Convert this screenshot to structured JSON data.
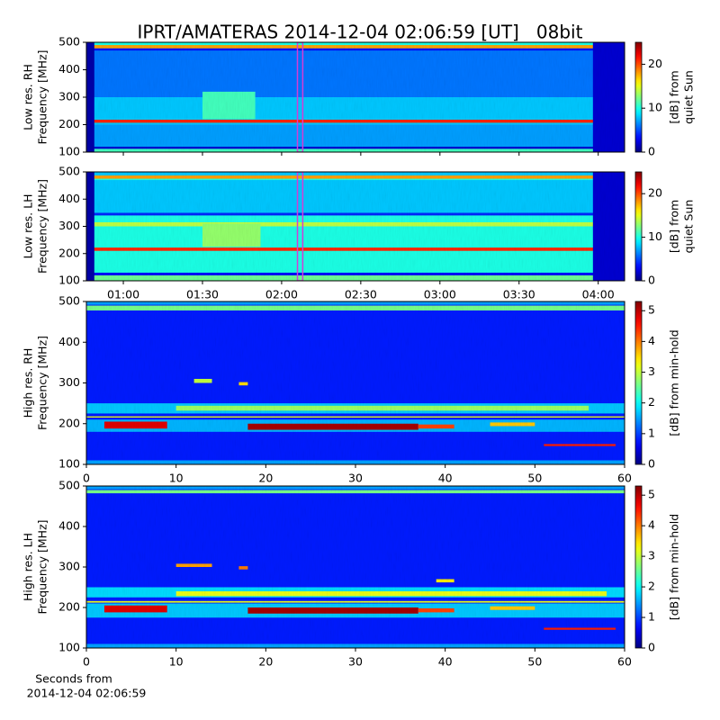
{
  "title": "IPRT/AMATERAS 2014-12-04 02:06:59 [UT]   08bit",
  "footer": [
    "Seconds from",
    "2014-12-04 02:06:59"
  ],
  "chart_data": [
    {
      "type": "heatmap",
      "colormap": "jet",
      "ylabel": [
        "Low res. RH",
        "Frequency [MHz]"
      ],
      "colorbar_label": [
        "[dB] from",
        "quiet Sun"
      ],
      "xlim": [
        46,
        250
      ],
      "xticks": [
        60,
        90,
        120,
        150,
        180,
        210,
        240
      ],
      "ylim": [
        100,
        500
      ],
      "yticks": [
        100,
        200,
        300,
        400,
        500
      ],
      "zlim": [
        0,
        25
      ],
      "zticks": [
        0,
        10,
        20
      ],
      "base_value": 8,
      "bands": [
        {
          "y": [
            100,
            112
          ],
          "value": 11
        },
        {
          "y": [
            112,
            120
          ],
          "value": 2
        },
        {
          "y": [
            120,
            200
          ],
          "value": 7
        },
        {
          "y": [
            207,
            218
          ],
          "value": 21
        },
        {
          "y": [
            300,
            470
          ],
          "value": 6
        },
        {
          "y": [
            470,
            478
          ],
          "value": 3
        },
        {
          "y": [
            478,
            490
          ],
          "value": 18
        },
        {
          "y": [
            490,
            500
          ],
          "value": 10
        }
      ],
      "patches": [
        {
          "x": [
            46,
            49
          ],
          "y": [
            100,
            500
          ],
          "value": 1
        },
        {
          "x": [
            238,
            250
          ],
          "y": [
            100,
            500
          ],
          "value": 2
        },
        {
          "x": [
            90,
            110
          ],
          "y": [
            220,
            320
          ],
          "value": 11
        }
      ],
      "marker": {
        "x": [
          126,
          128
        ],
        "color": "#d63cd6"
      }
    },
    {
      "type": "heatmap",
      "colormap": "jet",
      "ylabel": [
        "Low res. LH",
        "Frequency [MHz]"
      ],
      "colorbar_label": [
        "[dB] from",
        "quiet Sun"
      ],
      "xlim": [
        46,
        250
      ],
      "xticks": [
        {
          "value": 60,
          "label": "01:00"
        },
        {
          "value": 90,
          "label": "01:30"
        },
        {
          "value": 120,
          "label": "02:00"
        },
        {
          "value": 150,
          "label": "02:30"
        },
        {
          "value": 180,
          "label": "03:00"
        },
        {
          "value": 210,
          "label": "03:30"
        },
        {
          "value": 240,
          "label": "04:00"
        }
      ],
      "ylim": [
        100,
        500
      ],
      "yticks": [
        100,
        200,
        300,
        400,
        500
      ],
      "zlim": [
        0,
        25
      ],
      "zticks": [
        0,
        10,
        20
      ],
      "base_value": 10,
      "bands": [
        {
          "y": [
            100,
            120
          ],
          "value": 12
        },
        {
          "y": [
            120,
            130
          ],
          "value": 3
        },
        {
          "y": [
            130,
            205
          ],
          "value": 10
        },
        {
          "y": [
            210,
            222
          ],
          "value": 21
        },
        {
          "y": [
            300,
            315
          ],
          "value": 14
        },
        {
          "y": [
            340,
            350
          ],
          "value": 4
        },
        {
          "y": [
            350,
            470
          ],
          "value": 8
        },
        {
          "y": [
            475,
            487
          ],
          "value": 18
        },
        {
          "y": [
            487,
            500
          ],
          "value": 8
        }
      ],
      "patches": [
        {
          "x": [
            46,
            49
          ],
          "y": [
            100,
            500
          ],
          "value": 1
        },
        {
          "x": [
            238,
            250
          ],
          "y": [
            100,
            500
          ],
          "value": 2
        },
        {
          "x": [
            90,
            112
          ],
          "y": [
            225,
            310
          ],
          "value": 13
        }
      ],
      "marker": {
        "x": [
          126,
          128
        ],
        "color": "#d63cd6"
      }
    },
    {
      "type": "heatmap",
      "colormap": "jet",
      "ylabel": [
        "High res. RH",
        "Frequency [MHz]"
      ],
      "colorbar_label": [
        "[dB] from min-hold"
      ],
      "xlim": [
        0,
        60
      ],
      "xticks": [
        0,
        10,
        20,
        30,
        40,
        50,
        60
      ],
      "ylim": [
        100,
        500
      ],
      "yticks": [
        100,
        200,
        300,
        400,
        500
      ],
      "zlim": [
        0,
        5.3
      ],
      "zticks": [
        0,
        1,
        2,
        3,
        4,
        5
      ],
      "base_value": 0.8,
      "bands": [
        {
          "y": [
            100,
            110
          ],
          "value": 1.5
        },
        {
          "y": [
            180,
            210
          ],
          "value": 1.6
        },
        {
          "y": [
            215,
            218
          ],
          "value": 3.2
        },
        {
          "y": [
            225,
            250
          ],
          "value": 1.7
        },
        {
          "y": [
            478,
            490
          ],
          "value": 2.6
        },
        {
          "y": [
            492,
            500
          ],
          "value": 1.5
        }
      ],
      "patches": [
        {
          "x": [
            2,
            9
          ],
          "y": [
            188,
            205
          ],
          "value": 4.8
        },
        {
          "x": [
            18,
            37
          ],
          "y": [
            185,
            200
          ],
          "value": 5.1
        },
        {
          "x": [
            37,
            41
          ],
          "y": [
            188,
            198
          ],
          "value": 4.3
        },
        {
          "x": [
            45,
            50
          ],
          "y": [
            194,
            203
          ],
          "value": 3.6
        },
        {
          "x": [
            10,
            56
          ],
          "y": [
            232,
            244
          ],
          "value": 2.8
        },
        {
          "x": [
            12,
            14
          ],
          "y": [
            300,
            310
          ],
          "value": 3
        },
        {
          "x": [
            17,
            18
          ],
          "y": [
            294,
            302
          ],
          "value": 3.5
        },
        {
          "x": [
            51,
            59
          ],
          "y": [
            145,
            150
          ],
          "value": 4.5
        }
      ]
    },
    {
      "type": "heatmap",
      "colormap": "jet",
      "ylabel": [
        "High res. LH",
        "Frequency [MHz]"
      ],
      "colorbar_label": [
        "[dB] from min-hold"
      ],
      "xlim": [
        0,
        60
      ],
      "xticks": [
        0,
        10,
        20,
        30,
        40,
        50,
        60
      ],
      "ylim": [
        100,
        500
      ],
      "yticks": [
        100,
        200,
        300,
        400,
        500
      ],
      "zlim": [
        0,
        5.3
      ],
      "zticks": [
        0,
        1,
        2,
        3,
        4,
        5
      ],
      "base_value": 0.8,
      "bands": [
        {
          "y": [
            100,
            110
          ],
          "value": 1.5
        },
        {
          "y": [
            175,
            210
          ],
          "value": 1.7
        },
        {
          "y": [
            212,
            216
          ],
          "value": 3.2
        },
        {
          "y": [
            225,
            250
          ],
          "value": 1.8
        },
        {
          "y": [
            482,
            490
          ],
          "value": 2.6
        },
        {
          "y": [
            492,
            500
          ],
          "value": 1.5
        }
      ],
      "patches": [
        {
          "x": [
            2,
            9
          ],
          "y": [
            188,
            205
          ],
          "value": 4.8
        },
        {
          "x": [
            18,
            37
          ],
          "y": [
            185,
            200
          ],
          "value": 5.1
        },
        {
          "x": [
            37,
            41
          ],
          "y": [
            188,
            198
          ],
          "value": 4.3
        },
        {
          "x": [
            45,
            50
          ],
          "y": [
            194,
            203
          ],
          "value": 3.6
        },
        {
          "x": [
            10,
            58
          ],
          "y": [
            228,
            240
          ],
          "value": 3.2
        },
        {
          "x": [
            10,
            14
          ],
          "y": [
            300,
            308
          ],
          "value": 3.8
        },
        {
          "x": [
            17,
            18
          ],
          "y": [
            294,
            302
          ],
          "value": 4
        },
        {
          "x": [
            39,
            41
          ],
          "y": [
            262,
            270
          ],
          "value": 3.4
        },
        {
          "x": [
            51,
            59
          ],
          "y": [
            145,
            150
          ],
          "value": 4.5
        }
      ]
    }
  ]
}
